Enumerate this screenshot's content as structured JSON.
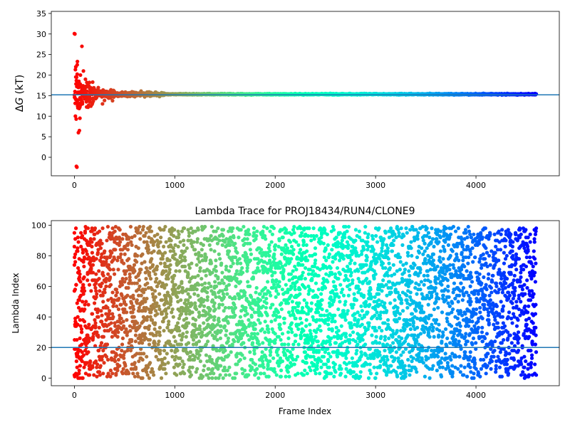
{
  "chart_data": [
    {
      "type": "scatter",
      "title": "",
      "xlabel": "",
      "ylabel_prefix": "Δ",
      "ylabel_var": "G",
      "ylabel_suffix": " (kT)",
      "xlim": [
        -230,
        4830
      ],
      "ylim": [
        -4.5,
        35.5
      ],
      "xticks": [
        0,
        1000,
        2000,
        3000,
        4000
      ],
      "xtick_labels": [
        "0",
        "1000",
        "2000",
        "3000",
        "4000"
      ],
      "yticks": [
        0,
        5,
        10,
        15,
        20,
        25,
        30,
        35
      ],
      "ytick_labels": [
        "0",
        "5",
        "10",
        "15",
        "20",
        "25",
        "30",
        "35"
      ],
      "hline": 15.2,
      "grid": false,
      "colormap": "rainbow reversed (red at frame 0, violet at last frame)",
      "n_frames": 4600,
      "series": [
        {
          "points": [
            [
              0,
              30.1
            ],
            [
              5,
              30.0
            ],
            [
              10,
              10.0
            ],
            [
              14,
              22.0
            ],
            [
              18,
              9.3
            ],
            [
              20,
              -2.2
            ],
            [
              25,
              -2.4
            ],
            [
              28,
              22.5
            ],
            [
              30,
              23.3
            ],
            [
              33,
              15.5
            ],
            [
              35,
              12.0
            ],
            [
              40,
              6.0
            ],
            [
              45,
              18.5
            ],
            [
              50,
              6.5
            ],
            [
              55,
              9.5
            ],
            [
              60,
              20.0
            ],
            [
              65,
              14.0
            ],
            [
              70,
              17.0
            ],
            [
              75,
              27.0
            ],
            [
              80,
              13.0
            ],
            [
              90,
              21.0
            ],
            [
              100,
              16.0
            ],
            [
              110,
              19.0
            ],
            [
              120,
              13.5
            ],
            [
              130,
              17.5
            ],
            [
              140,
              15.0
            ],
            [
              150,
              18.2
            ],
            [
              160,
              14.2
            ],
            [
              170,
              16.8
            ],
            [
              180,
              13.2
            ],
            [
              200,
              16.5
            ],
            [
              220,
              14.5
            ],
            [
              250,
              16.0
            ],
            [
              280,
              13.0
            ],
            [
              300,
              15.8
            ],
            [
              350,
              14.6
            ],
            [
              400,
              15.9
            ],
            [
              450,
              14.9
            ],
            [
              500,
              15.4
            ],
            [
              600,
              15.1
            ],
            [
              700,
              14.7
            ],
            [
              800,
              15.6
            ],
            [
              900,
              15.4
            ],
            [
              1000,
              15.3
            ],
            [
              1200,
              15.4
            ],
            [
              1500,
              15.3
            ],
            [
              2000,
              15.4
            ],
            [
              2500,
              15.5
            ],
            [
              3000,
              15.4
            ],
            [
              3500,
              15.4
            ],
            [
              4000,
              15.4
            ],
            [
              4600,
              15.4
            ]
          ]
        }
      ]
    },
    {
      "type": "scatter",
      "title": "Lambda Trace for PROJ18434/RUN4/CLONE9",
      "xlabel": "Frame Index",
      "ylabel": "Lambda Index",
      "xlim": [
        -230,
        4830
      ],
      "ylim": [
        -5,
        103
      ],
      "xticks": [
        0,
        1000,
        2000,
        3000,
        4000
      ],
      "xtick_labels": [
        "0",
        "1000",
        "2000",
        "3000",
        "4000"
      ],
      "yticks": [
        0,
        20,
        40,
        60,
        80,
        100
      ],
      "ytick_labels": [
        "0",
        "20",
        "40",
        "60",
        "80",
        "100"
      ],
      "hline": 20,
      "grid": false,
      "colormap": "rainbow reversed (red at frame 0, violet at last frame)",
      "n_frames": 4600,
      "lambda_range": [
        0,
        99
      ],
      "series": [
        {
          "points": [
            [
              0,
              2
            ],
            [
              0,
              86
            ],
            [
              0,
              57
            ],
            [
              0,
              74
            ],
            [
              0,
              95
            ],
            [
              50,
              13
            ],
            [
              50,
              64
            ],
            [
              100,
              37
            ],
            [
              100,
              91
            ],
            [
              150,
              2
            ],
            [
              150,
              78
            ],
            [
              200,
              49
            ],
            [
              250,
              96
            ],
            [
              300,
              21
            ],
            [
              350,
              60
            ],
            [
              400,
              84
            ],
            [
              450,
              8
            ],
            [
              500,
              45
            ],
            [
              600,
              70
            ],
            [
              700,
              27
            ],
            [
              800,
              93
            ],
            [
              900,
              54
            ],
            [
              1000,
              12
            ],
            [
              1100,
              77
            ],
            [
              1200,
              35
            ],
            [
              1300,
              99
            ],
            [
              1400,
              63
            ],
            [
              1500,
              18
            ],
            [
              1600,
              88
            ],
            [
              1700,
              41
            ],
            [
              1800,
              5
            ],
            [
              1900,
              72
            ],
            [
              2000,
              29
            ],
            [
              2100,
              95
            ],
            [
              2200,
              53
            ],
            [
              2300,
              10
            ],
            [
              2400,
              81
            ],
            [
              2500,
              38
            ],
            [
              2600,
              66
            ],
            [
              2700,
              15
            ],
            [
              2800,
              90
            ],
            [
              2900,
              47
            ],
            [
              3000,
              24
            ],
            [
              3100,
              83
            ],
            [
              3200,
              58
            ],
            [
              3300,
              3
            ],
            [
              3400,
              69
            ],
            [
              3500,
              33
            ],
            [
              3600,
              97
            ],
            [
              3700,
              51
            ],
            [
              3800,
              14
            ],
            [
              3900,
              79
            ],
            [
              4000,
              42
            ],
            [
              4100,
              61
            ],
            [
              4200,
              8
            ],
            [
              4300,
              94
            ],
            [
              4400,
              26
            ],
            [
              4500,
              73
            ],
            [
              4600,
              98
            ],
            [
              4600,
              2
            ]
          ]
        }
      ]
    }
  ]
}
